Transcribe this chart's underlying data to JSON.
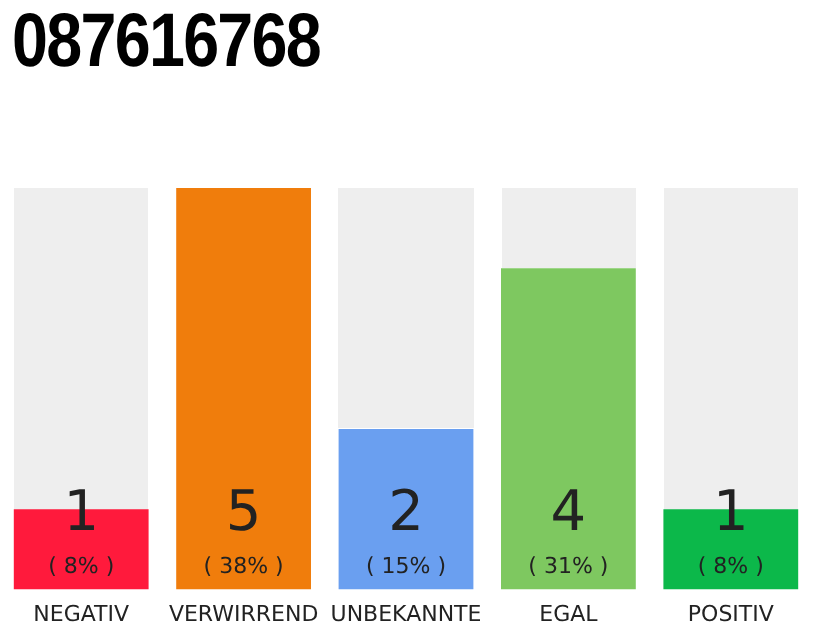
{
  "chart_data": {
    "type": "bar",
    "title": "087616768",
    "categories": [
      "NEGATIV",
      "VERWIRREND",
      "UNBEKANNTE",
      "EGAL",
      "POSITIV"
    ],
    "values": [
      1,
      5,
      2,
      4,
      1
    ],
    "colors": [
      "#ff1a3c",
      "#f07d0c",
      "#6a9ff0",
      "#7ec860",
      "#0cb84a"
    ],
    "ylim": [
      0,
      5
    ],
    "tick_labels": "x",
    "grid": false,
    "legend": false,
    "data_labels": true,
    "annotations": [
      "( 8% )",
      "( 38% )",
      "( 15% )",
      "( 31% )",
      "( 8% )"
    ]
  }
}
